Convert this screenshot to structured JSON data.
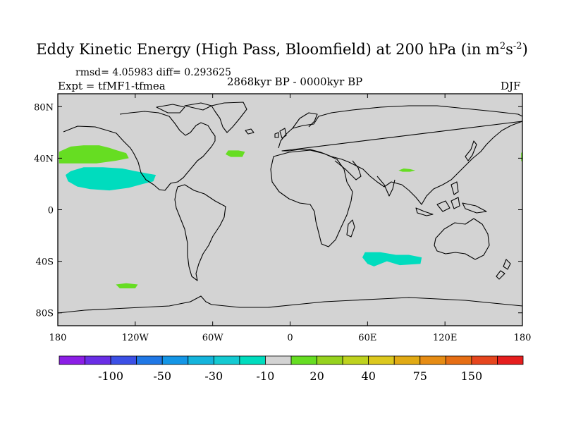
{
  "figure": {
    "title": "Eddy Kinetic Energy (High Pass, Bloomfield) at 200 hPa (in m",
    "title_sup1": "2",
    "title_mid": "s",
    "title_sup2": "-2",
    "title_close": ")",
    "stats": "rmsd= 4.05983 diff= 0.293625",
    "experiment": "Expt = tfMF1-tfmea",
    "period": "2868kyr BP - 0000kyr BP",
    "season": "DJF"
  },
  "map": {
    "projection": "cylindrical-equidistant",
    "lon_range": [
      -180,
      180
    ],
    "lat_range": [
      -90,
      90
    ],
    "background_color": "#d3d3d3",
    "lon_tick_labels": [
      "180",
      "120W",
      "60W",
      "0",
      "60E",
      "120E",
      "180"
    ],
    "lon_tick_values": [
      -180,
      -120,
      -60,
      0,
      60,
      120,
      180
    ],
    "lat_tick_labels": [
      "80N",
      "40N",
      "0",
      "40S",
      "80S"
    ],
    "lat_tick_values": [
      80,
      40,
      0,
      -40,
      -80
    ],
    "anomaly_regions": [
      {
        "name": "north-pacific-positive",
        "sign": "positive",
        "color": "#66dd22",
        "lonlat": [
          [
            -179,
            45
          ],
          [
            -170,
            49
          ],
          [
            -160,
            50
          ],
          [
            -148,
            50
          ],
          [
            -140,
            48
          ],
          [
            -134,
            46
          ],
          [
            -127,
            44
          ],
          [
            -125,
            40
          ],
          [
            -135,
            38
          ],
          [
            -150,
            36
          ],
          [
            -165,
            36
          ],
          [
            -179,
            36
          ]
        ]
      },
      {
        "name": "north-atlantic-positive",
        "sign": "positive",
        "color": "#66dd22",
        "lonlat": [
          [
            -48,
            46
          ],
          [
            -40,
            46
          ],
          [
            -35,
            45
          ],
          [
            -37,
            41
          ],
          [
            -46,
            41
          ],
          [
            -50,
            43
          ]
        ]
      },
      {
        "name": "central-asia-positive",
        "sign": "positive",
        "color": "#66dd22",
        "lonlat": [
          [
            88,
            32
          ],
          [
            93,
            31.5
          ],
          [
            97,
            30.5
          ],
          [
            93,
            29.5
          ],
          [
            87,
            29.5
          ],
          [
            84,
            30.5
          ]
        ]
      },
      {
        "name": "west-pacific-edge-positive",
        "sign": "positive",
        "color": "#66dd22",
        "lonlat": [
          [
            179,
            44
          ],
          [
            180,
            45
          ],
          [
            180,
            37
          ],
          [
            179,
            38
          ]
        ]
      },
      {
        "name": "south-pacific-positive",
        "sign": "positive",
        "color": "#66dd22",
        "lonlat": [
          [
            -135,
            -58
          ],
          [
            -127,
            -57
          ],
          [
            -118,
            -58
          ],
          [
            -120,
            -61
          ],
          [
            -132,
            -61
          ]
        ]
      },
      {
        "name": "east-pacific-negative",
        "sign": "negative",
        "color": "#00dcbe",
        "lonlat": [
          [
            -170,
            30
          ],
          [
            -160,
            33
          ],
          [
            -145,
            33
          ],
          [
            -130,
            32
          ],
          [
            -120,
            30
          ],
          [
            -110,
            28
          ],
          [
            -104,
            27
          ],
          [
            -106,
            22
          ],
          [
            -114,
            20
          ],
          [
            -125,
            17
          ],
          [
            -140,
            15
          ],
          [
            -155,
            16
          ],
          [
            -165,
            18
          ],
          [
            -172,
            22
          ],
          [
            -174,
            27
          ]
        ]
      },
      {
        "name": "south-indian-negative",
        "sign": "negative",
        "color": "#00dcbe",
        "lonlat": [
          [
            58,
            -33
          ],
          [
            70,
            -33
          ],
          [
            82,
            -35
          ],
          [
            92,
            -35
          ],
          [
            102,
            -37
          ],
          [
            101,
            -42
          ],
          [
            85,
            -43
          ],
          [
            75,
            -40
          ],
          [
            65,
            -44
          ],
          [
            60,
            -42
          ],
          [
            56,
            -37
          ]
        ]
      }
    ]
  },
  "colorbar": {
    "colors": [
      "#8c1ee6",
      "#6a2ee6",
      "#3c50e6",
      "#2078e6",
      "#1496e6",
      "#14b4dc",
      "#14cad2",
      "#00dcbe",
      "#d3d3d3",
      "#66dd22",
      "#96d21e",
      "#bed21e",
      "#dcc81e",
      "#e1aa14",
      "#e68c14",
      "#e66e14",
      "#e6461e",
      "#e61e1e"
    ],
    "labels": [
      "-100",
      "-50",
      "-30",
      "-10",
      "20",
      "40",
      "75",
      "150"
    ]
  }
}
